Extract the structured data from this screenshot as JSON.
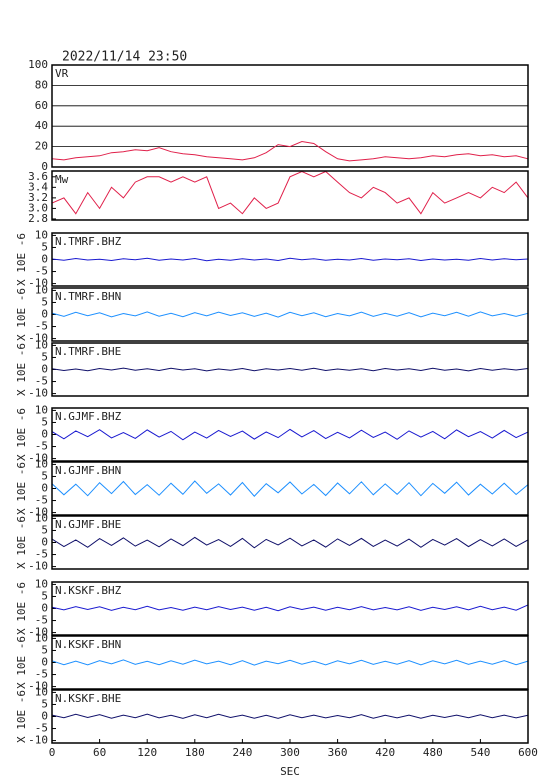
{
  "chart_data": [
    {
      "type": "line",
      "title": "2022/11/14 23:50",
      "grid": true,
      "x": [
        0,
        15,
        30,
        45,
        60,
        75,
        90,
        105,
        120,
        135,
        150,
        165,
        180,
        195,
        210,
        225,
        240,
        255,
        270,
        285,
        300,
        315,
        330,
        345,
        360,
        375,
        390,
        405,
        420,
        435,
        450,
        465,
        480,
        495,
        510,
        525,
        540,
        555,
        570,
        585,
        600
      ],
      "xlim": [
        0,
        600
      ],
      "ylim": [
        0,
        100
      ],
      "yticks": [
        0,
        20,
        40,
        60,
        80,
        100
      ],
      "series": [
        {
          "name": "VR",
          "color": "#e0204a",
          "values": [
            8,
            7,
            9,
            10,
            11,
            14,
            15,
            17,
            16,
            19,
            15,
            13,
            12,
            10,
            9,
            8,
            7,
            9,
            14,
            22,
            20,
            25,
            23,
            15,
            8,
            6,
            7,
            8,
            10,
            9,
            8,
            9,
            11,
            10,
            12,
            13,
            11,
            12,
            10,
            11,
            8
          ]
        }
      ]
    },
    {
      "type": "line",
      "grid": false,
      "x": [
        0,
        15,
        30,
        45,
        60,
        75,
        90,
        105,
        120,
        135,
        150,
        165,
        180,
        195,
        210,
        225,
        240,
        255,
        270,
        285,
        300,
        315,
        330,
        345,
        360,
        375,
        390,
        405,
        420,
        435,
        450,
        465,
        480,
        495,
        510,
        525,
        540,
        555,
        570,
        585,
        600
      ],
      "xlim": [
        0,
        600
      ],
      "ylim": [
        2.78,
        3.71
      ],
      "yticks": [
        {
          "value": 2.8,
          "label": "2.8"
        },
        {
          "value": 3,
          "label": "3.0"
        },
        3.2,
        3.4,
        3.6
      ],
      "series": [
        {
          "name": "Mw",
          "color": "#e0204a",
          "values": [
            3.1,
            3.2,
            2.9,
            3.3,
            3.0,
            3.4,
            3.2,
            3.5,
            3.6,
            3.6,
            3.5,
            3.6,
            3.5,
            3.6,
            3.0,
            3.1,
            2.9,
            3.2,
            3.0,
            3.1,
            3.6,
            3.7,
            3.6,
            3.7,
            3.5,
            3.3,
            3.2,
            3.4,
            3.3,
            3.1,
            3.2,
            2.9,
            3.3,
            3.1,
            3.2,
            3.3,
            3.2,
            3.4,
            3.3,
            3.5,
            3.2
          ]
        }
      ]
    },
    {
      "type": "line",
      "ylabel": "X 10E -6",
      "x": [
        0,
        15,
        30,
        45,
        60,
        75,
        90,
        105,
        120,
        135,
        150,
        165,
        180,
        195,
        210,
        225,
        240,
        255,
        270,
        285,
        300,
        315,
        330,
        345,
        360,
        375,
        390,
        405,
        420,
        435,
        450,
        465,
        480,
        495,
        510,
        525,
        540,
        555,
        570,
        585,
        600
      ],
      "xlim": [
        0,
        600
      ],
      "ylim": [
        -11,
        11
      ],
      "yticks": [
        -10,
        -5,
        0,
        5,
        10
      ],
      "series": [
        {
          "name": "N.TMRF.BHZ",
          "color": "#1a1ad0",
          "values": [
            0.2,
            -0.3,
            0.4,
            -0.2,
            0.1,
            -0.4,
            0.3,
            -0.1,
            0.5,
            -0.3,
            0.2,
            -0.2,
            0.4,
            -0.5,
            0.1,
            -0.3,
            0.3,
            -0.2,
            0.2,
            -0.4,
            0.5,
            -0.1,
            0.3,
            -0.3,
            0.1,
            -0.2,
            0.4,
            -0.3,
            0.2,
            -0.1,
            0.3,
            -0.4,
            0.2,
            -0.2,
            0.1,
            -0.3,
            0.4,
            -0.2,
            0.3,
            -0.1,
            0.2
          ]
        }
      ]
    },
    {
      "type": "line",
      "ylabel": "X 10E -6",
      "x": [
        0,
        15,
        30,
        45,
        60,
        75,
        90,
        105,
        120,
        135,
        150,
        165,
        180,
        195,
        210,
        225,
        240,
        255,
        270,
        285,
        300,
        315,
        330,
        345,
        360,
        375,
        390,
        405,
        420,
        435,
        450,
        465,
        480,
        495,
        510,
        525,
        540,
        555,
        570,
        585,
        600
      ],
      "xlim": [
        0,
        600
      ],
      "ylim": [
        -11,
        11
      ],
      "yticks": [
        -10,
        -5,
        0,
        5,
        10
      ],
      "series": [
        {
          "name": "N.TMRF.BHN",
          "color": "#1e90ff",
          "values": [
            0.6,
            -0.8,
            0.9,
            -0.5,
            0.7,
            -1.0,
            0.4,
            -0.6,
            1.1,
            -0.7,
            0.5,
            -0.9,
            0.8,
            -0.6,
            1.0,
            -0.4,
            0.7,
            -0.8,
            0.6,
            -1.1,
            0.9,
            -0.5,
            0.7,
            -0.9,
            0.4,
            -0.6,
            1.0,
            -0.8,
            0.5,
            -0.7,
            0.8,
            -1.0,
            0.6,
            -0.5,
            0.9,
            -0.7,
            1.1,
            -0.6,
            0.4,
            -0.8,
            0.5
          ]
        }
      ]
    },
    {
      "type": "line",
      "ylabel": "X 10E -6",
      "x": [
        0,
        15,
        30,
        45,
        60,
        75,
        90,
        105,
        120,
        135,
        150,
        165,
        180,
        195,
        210,
        225,
        240,
        255,
        270,
        285,
        300,
        315,
        330,
        345,
        360,
        375,
        390,
        405,
        420,
        435,
        450,
        465,
        480,
        495,
        510,
        525,
        540,
        555,
        570,
        585,
        600
      ],
      "xlim": [
        0,
        600
      ],
      "ylim": [
        -11,
        11
      ],
      "yticks": [
        -10,
        -5,
        0,
        5,
        10
      ],
      "series": [
        {
          "name": "N.TMRF.BHE",
          "color": "#10106a",
          "values": [
            0.3,
            -0.4,
            0.2,
            -0.5,
            0.4,
            -0.2,
            0.6,
            -0.3,
            0.3,
            -0.4,
            0.5,
            -0.2,
            0.3,
            -0.6,
            0.2,
            -0.3,
            0.4,
            -0.5,
            0.3,
            -0.2,
            0.4,
            -0.3,
            0.5,
            -0.4,
            0.2,
            -0.3,
            0.3,
            -0.5,
            0.4,
            -0.2,
            0.3,
            -0.4,
            0.5,
            -0.3,
            0.2,
            -0.6,
            0.4,
            -0.3,
            0.3,
            -0.2,
            0.4
          ]
        }
      ]
    },
    {
      "type": "line",
      "ylabel": "X 10E -6",
      "x": [
        0,
        15,
        30,
        45,
        60,
        75,
        90,
        105,
        120,
        135,
        150,
        165,
        180,
        195,
        210,
        225,
        240,
        255,
        270,
        285,
        300,
        315,
        330,
        345,
        360,
        375,
        390,
        405,
        420,
        435,
        450,
        465,
        480,
        495,
        510,
        525,
        540,
        555,
        570,
        585,
        600
      ],
      "xlim": [
        0,
        600
      ],
      "ylim": [
        -11,
        11
      ],
      "yticks": [
        -10,
        -5,
        0,
        5,
        10
      ],
      "series": [
        {
          "name": "N.GJMF.BHZ",
          "color": "#1a1ad0",
          "values": [
            1.2,
            -1.8,
            1.5,
            -0.9,
            2.0,
            -1.4,
            0.8,
            -1.6,
            1.9,
            -1.1,
            1.3,
            -2.2,
            1.0,
            -1.5,
            1.7,
            -0.8,
            1.4,
            -1.9,
            1.1,
            -1.3,
            2.1,
            -1.0,
            1.6,
            -1.7,
            0.9,
            -1.4,
            1.8,
            -1.2,
            1.0,
            -2.0,
            1.5,
            -1.1,
            1.3,
            -1.8,
            1.9,
            -0.9,
            1.2,
            -1.5,
            1.7,
            -1.3,
            1.0
          ]
        }
      ]
    },
    {
      "type": "line",
      "ylabel": "X 10E -6",
      "x": [
        0,
        15,
        30,
        45,
        60,
        75,
        90,
        105,
        120,
        135,
        150,
        165,
        180,
        195,
        210,
        225,
        240,
        255,
        270,
        285,
        300,
        315,
        330,
        345,
        360,
        375,
        390,
        405,
        420,
        435,
        450,
        465,
        480,
        495,
        510,
        525,
        540,
        555,
        570,
        585,
        600
      ],
      "xlim": [
        0,
        600
      ],
      "ylim": [
        -11,
        11
      ],
      "yticks": [
        -10,
        -5,
        0,
        5,
        10
      ],
      "series": [
        {
          "name": "N.GJMF.BHN",
          "color": "#1e90ff",
          "values": [
            2.0,
            -2.6,
            1.8,
            -3.0,
            2.4,
            -2.1,
            2.9,
            -2.5,
            1.6,
            -2.8,
            2.2,
            -2.4,
            3.1,
            -2.0,
            1.9,
            -2.7,
            2.5,
            -3.2,
            2.0,
            -1.8,
            2.7,
            -2.3,
            1.7,
            -2.9,
            2.3,
            -2.2,
            2.8,
            -2.6,
            1.9,
            -2.4,
            2.4,
            -3.0,
            2.1,
            -2.0,
            2.6,
            -2.7,
            1.8,
            -2.3,
            2.2,
            -2.5,
            1.6
          ]
        }
      ]
    },
    {
      "type": "line",
      "ylabel": "X 10E -6",
      "x": [
        0,
        15,
        30,
        45,
        60,
        75,
        90,
        105,
        120,
        135,
        150,
        165,
        180,
        195,
        210,
        225,
        240,
        255,
        270,
        285,
        300,
        315,
        330,
        345,
        360,
        375,
        390,
        405,
        420,
        435,
        450,
        465,
        480,
        495,
        510,
        525,
        540,
        555,
        570,
        585,
        600
      ],
      "xlim": [
        0,
        600
      ],
      "ylim": [
        -11,
        11
      ],
      "yticks": [
        -10,
        -5,
        0,
        5,
        10
      ],
      "series": [
        {
          "name": "N.GJMF.BHE",
          "color": "#10106a",
          "values": [
            1.4,
            -1.7,
            1.1,
            -2.0,
            1.6,
            -1.2,
            1.9,
            -1.5,
            1.0,
            -1.8,
            1.5,
            -1.3,
            2.1,
            -1.1,
            1.2,
            -1.6,
            1.7,
            -2.2,
            1.3,
            -1.0,
            1.8,
            -1.4,
            1.1,
            -1.9,
            1.5,
            -1.2,
            1.7,
            -1.6,
            1.0,
            -1.5,
            1.4,
            -2.0,
            1.3,
            -1.1,
            1.6,
            -1.7,
            1.2,
            -1.4,
            1.5,
            -1.6,
            1.1
          ]
        }
      ]
    },
    {
      "type": "line",
      "ylabel": "X 10E -6",
      "x": [
        0,
        15,
        30,
        45,
        60,
        75,
        90,
        105,
        120,
        135,
        150,
        165,
        180,
        195,
        210,
        225,
        240,
        255,
        270,
        285,
        300,
        315,
        330,
        345,
        360,
        375,
        390,
        405,
        420,
        435,
        450,
        465,
        480,
        495,
        510,
        525,
        540,
        555,
        570,
        585,
        600
      ],
      "xlim": [
        0,
        600
      ],
      "ylim": [
        -11,
        11
      ],
      "yticks": [
        -10,
        -5,
        0,
        5,
        10
      ],
      "series": [
        {
          "name": "N.KSKF.BHZ",
          "color": "#1a1ad0",
          "values": [
            0.5,
            -0.6,
            0.8,
            -0.4,
            0.7,
            -0.8,
            0.5,
            -0.5,
            0.9,
            -0.6,
            0.4,
            -0.7,
            0.6,
            -0.5,
            0.8,
            -0.4,
            0.6,
            -0.7,
            0.5,
            -0.9,
            0.7,
            -0.4,
            0.6,
            -0.7,
            0.5,
            -0.5,
            0.8,
            -0.6,
            0.4,
            -0.6,
            0.7,
            -0.8,
            0.5,
            -0.4,
            0.7,
            -0.6,
            0.9,
            -0.5,
            0.6,
            -0.7,
            1.5
          ]
        }
      ]
    },
    {
      "type": "line",
      "ylabel": "X 10E -6",
      "x": [
        0,
        15,
        30,
        45,
        60,
        75,
        90,
        105,
        120,
        135,
        150,
        165,
        180,
        195,
        210,
        225,
        240,
        255,
        270,
        285,
        300,
        315,
        330,
        345,
        360,
        375,
        390,
        405,
        420,
        435,
        450,
        465,
        480,
        495,
        510,
        525,
        540,
        555,
        570,
        585,
        600
      ],
      "xlim": [
        0,
        600
      ],
      "ylim": [
        -11,
        11
      ],
      "yticks": [
        -10,
        -5,
        0,
        5,
        10
      ],
      "series": [
        {
          "name": "N.KSKF.BHN",
          "color": "#1e90ff",
          "values": [
            0.7,
            -0.9,
            0.6,
            -1.0,
            0.8,
            -0.6,
            1.1,
            -0.8,
            0.5,
            -0.9,
            0.7,
            -0.7,
            1.0,
            -0.6,
            0.6,
            -0.9,
            0.8,
            -1.1,
            0.6,
            -0.5,
            0.9,
            -0.7,
            0.6,
            -1.0,
            0.7,
            -0.6,
            0.9,
            -0.8,
            0.5,
            -0.7,
            0.8,
            -1.0,
            0.7,
            -0.6,
            0.9,
            -0.8,
            0.6,
            -0.7,
            0.8,
            -0.9,
            0.6
          ]
        }
      ]
    },
    {
      "type": "line",
      "ylabel": "X 10E -6",
      "xlabel": "SEC",
      "x": [
        0,
        15,
        30,
        45,
        60,
        75,
        90,
        105,
        120,
        135,
        150,
        165,
        180,
        195,
        210,
        225,
        240,
        255,
        270,
        285,
        300,
        315,
        330,
        345,
        360,
        375,
        390,
        405,
        420,
        435,
        450,
        465,
        480,
        495,
        510,
        525,
        540,
        555,
        570,
        585,
        600
      ],
      "xlim": [
        0,
        600
      ],
      "xticks": [
        0,
        60,
        120,
        180,
        240,
        300,
        360,
        420,
        480,
        540,
        600
      ],
      "ylim": [
        -11,
        11
      ],
      "yticks": [
        -10,
        -5,
        0,
        5,
        10
      ],
      "series": [
        {
          "name": "N.KSKF.BHE",
          "color": "#10106a",
          "values": [
            0.6,
            -0.5,
            0.9,
            -0.4,
            0.8,
            -0.7,
            0.6,
            -0.5,
            1.0,
            -0.6,
            0.5,
            -0.8,
            0.7,
            -0.5,
            0.9,
            -0.4,
            0.6,
            -0.7,
            0.5,
            -0.8,
            0.7,
            -0.5,
            0.6,
            -0.6,
            0.4,
            -0.5,
            0.8,
            -0.7,
            0.5,
            -0.6,
            0.6,
            -0.7,
            0.5,
            -0.4,
            0.6,
            -0.5,
            0.7,
            -0.5,
            0.6,
            -0.6,
            0.5
          ]
        }
      ]
    }
  ]
}
